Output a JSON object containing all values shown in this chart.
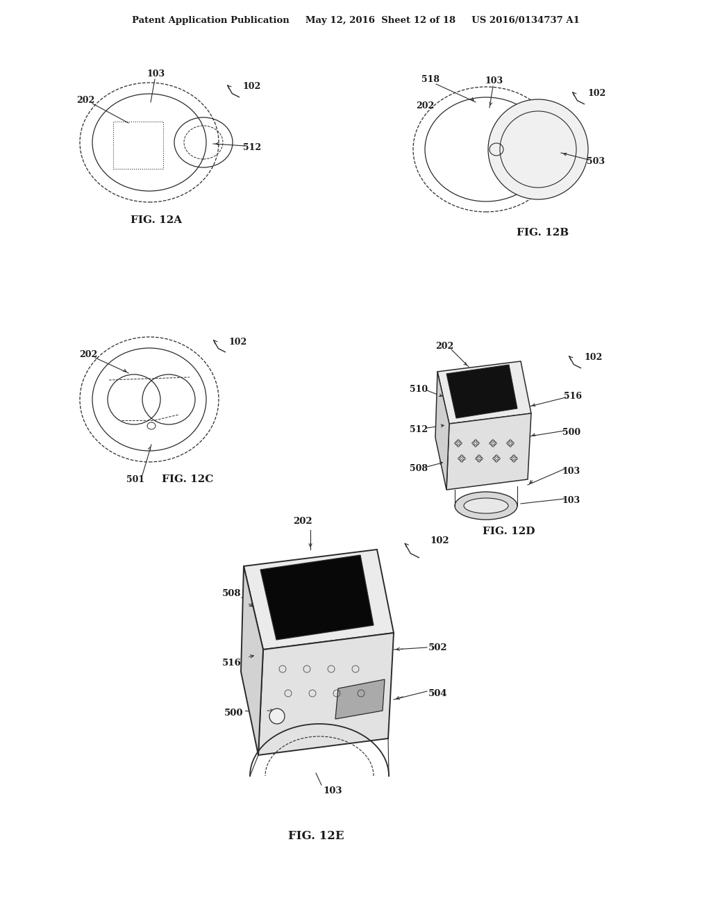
{
  "background_color": "#ffffff",
  "header_text": "Patent Application Publication     May 12, 2016  Sheet 12 of 18     US 2016/0134737 A1",
  "fig_labels": {
    "12A": "FIG. 12A",
    "12B": "FIG. 12B",
    "12C": "FIG. 12C",
    "12D": "FIG. 12D",
    "12E": "FIG. 12E"
  },
  "line_color": "#2a2a2a",
  "text_color": "#1a1a1a",
  "gray_fill": "#e8e8e8",
  "light_gray": "#f0f0f0",
  "dark_gray": "#c0c0c0"
}
